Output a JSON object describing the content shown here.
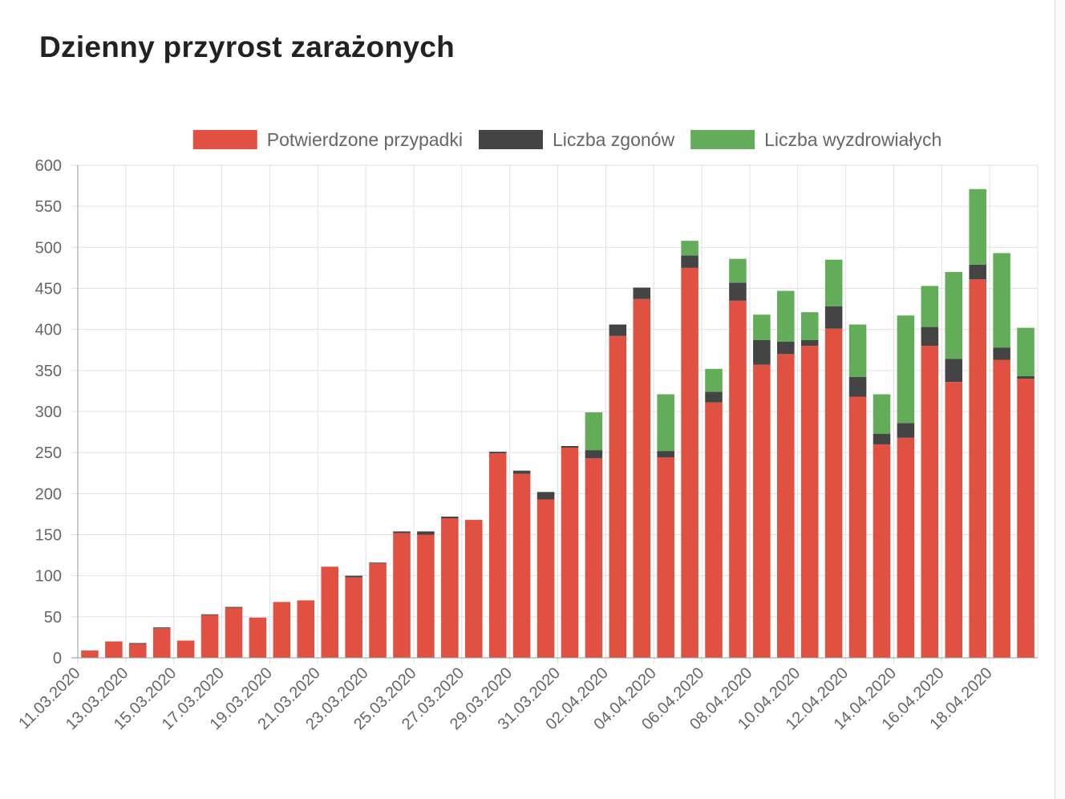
{
  "page": {
    "title": "Dzienny przyrost zarażonych"
  },
  "chart_data": {
    "type": "bar",
    "stacked": true,
    "title": "Dzienny przyrost zarażonych",
    "xlabel": "",
    "ylabel": "",
    "ylim": [
      0,
      600
    ],
    "y_ticks": [
      0,
      50,
      100,
      150,
      200,
      250,
      300,
      350,
      400,
      450,
      500,
      550,
      600
    ],
    "grid": true,
    "legend_position": "top",
    "categories": [
      "11.03.2020",
      "12.03.2020",
      "13.03.2020",
      "14.03.2020",
      "15.03.2020",
      "16.03.2020",
      "17.03.2020",
      "18.03.2020",
      "19.03.2020",
      "20.03.2020",
      "21.03.2020",
      "22.03.2020",
      "23.03.2020",
      "24.03.2020",
      "25.03.2020",
      "26.03.2020",
      "27.03.2020",
      "28.03.2020",
      "29.03.2020",
      "30.03.2020",
      "31.03.2020",
      "01.04.2020",
      "02.04.2020",
      "03.04.2020",
      "04.04.2020",
      "05.04.2020",
      "06.04.2020",
      "07.04.2020",
      "08.04.2020",
      "09.04.2020",
      "10.04.2020",
      "11.04.2020",
      "12.04.2020",
      "13.04.2020",
      "14.04.2020",
      "15.04.2020",
      "16.04.2020",
      "17.04.2020",
      "18.04.2020",
      "19.04.2020"
    ],
    "tick_labels": [
      "11.03.2020",
      "13.03.2020",
      "15.03.2020",
      "17.03.2020",
      "19.03.2020",
      "21.03.2020",
      "23.03.2020",
      "25.03.2020",
      "27.03.2020",
      "29.03.2020",
      "31.03.2020",
      "02.04.2020",
      "04.04.2020",
      "06.04.2020",
      "08.04.2020",
      "10.04.2020",
      "12.04.2020",
      "14.04.2020",
      "16.04.2020",
      "18.04.2020"
    ],
    "series": [
      {
        "name": "Potwierdzone przypadki",
        "color": "#e05141",
        "values": [
          9,
          20,
          17,
          36,
          21,
          52,
          61,
          49,
          68,
          70,
          111,
          98,
          115,
          152,
          150,
          170,
          168,
          249,
          224,
          193,
          256,
          243,
          392,
          437,
          244,
          475,
          311,
          435,
          357,
          370,
          380,
          401,
          318,
          260,
          268,
          380,
          336,
          461,
          363,
          340
        ]
      },
      {
        "name": "Liczba zgonów",
        "color": "#444444",
        "values": [
          0,
          0,
          1,
          1,
          0,
          1,
          1,
          0,
          0,
          0,
          0,
          2,
          1,
          2,
          4,
          2,
          0,
          2,
          4,
          9,
          2,
          10,
          14,
          14,
          8,
          15,
          13,
          22,
          30,
          15,
          7,
          27,
          24,
          13,
          18,
          23,
          28,
          18,
          15,
          3
        ]
      },
      {
        "name": "Liczba wyzdrowiałych",
        "color": "#63ad5a",
        "values": [
          0,
          0,
          0,
          0,
          0,
          0,
          0,
          0,
          0,
          0,
          0,
          0,
          0,
          0,
          0,
          0,
          0,
          0,
          0,
          0,
          0,
          46,
          0,
          0,
          69,
          18,
          28,
          29,
          31,
          62,
          34,
          57,
          64,
          48,
          131,
          50,
          106,
          92,
          115,
          59
        ]
      }
    ]
  }
}
